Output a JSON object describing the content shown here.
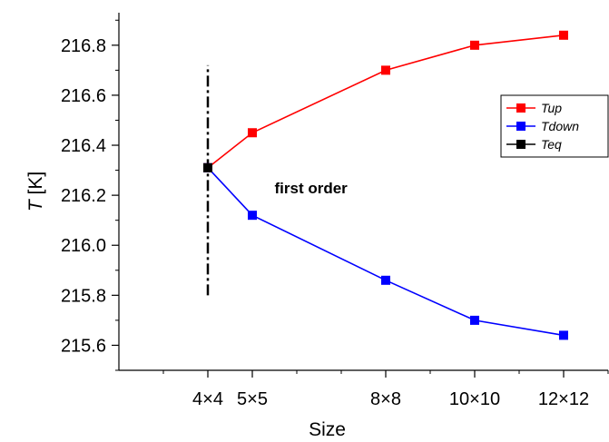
{
  "chart_data": {
    "type": "line",
    "xlabel": "Size",
    "ylabel_italic": "T",
    "ylabel_unit": " [K]",
    "x_ticks": [
      {
        "value": 4,
        "label": "4×4"
      },
      {
        "value": 5,
        "label": "5×5"
      },
      {
        "value": 8,
        "label": "8×8"
      },
      {
        "value": 10,
        "label": "10×10"
      },
      {
        "value": 12,
        "label": "12×12"
      }
    ],
    "y_ticks": [
      {
        "value": 215.6,
        "label": "215.6"
      },
      {
        "value": 215.8,
        "label": "215.8"
      },
      {
        "value": 216.0,
        "label": "216.0"
      },
      {
        "value": 216.2,
        "label": "216.2"
      },
      {
        "value": 216.4,
        "label": "216.4"
      },
      {
        "value": 216.6,
        "label": "216.6"
      },
      {
        "value": 216.8,
        "label": "216.8"
      }
    ],
    "xlim": [
      2,
      13
    ],
    "ylim": [
      215.5,
      216.93
    ],
    "series": [
      {
        "name": "Tup",
        "color": "#ff0000",
        "x": [
          4,
          5,
          8,
          10,
          12
        ],
        "y": [
          216.31,
          216.45,
          216.7,
          216.8,
          216.84
        ]
      },
      {
        "name": "Tdown",
        "color": "#0000ff",
        "x": [
          4,
          5,
          8,
          10,
          12
        ],
        "y": [
          216.31,
          216.12,
          215.86,
          215.7,
          215.64
        ]
      },
      {
        "name": "Teq",
        "color": "#000000",
        "x": [
          4
        ],
        "y": [
          216.31
        ]
      }
    ],
    "vertical_line": {
      "x": 4,
      "y_from": 215.8,
      "y_to": 216.72,
      "style": "dash-dot",
      "color": "#000000"
    },
    "annotations": [
      {
        "text": "first order",
        "x": 5.5,
        "y": 216.23
      }
    ],
    "legend": {
      "position": "right",
      "entries": [
        "Tup",
        "Tdown",
        "Teq"
      ]
    },
    "grid": false
  }
}
